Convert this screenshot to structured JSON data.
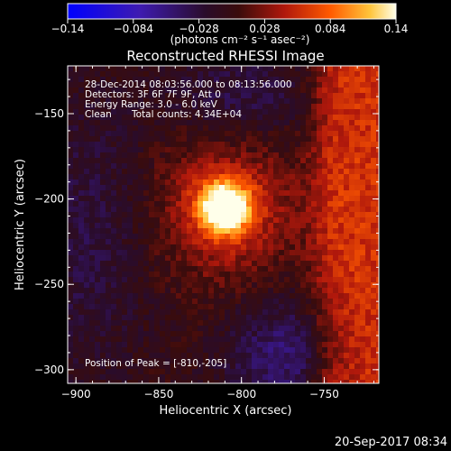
{
  "chart_data": {
    "type": "heatmap",
    "title": "Reconstructed RHESSI Image",
    "xlabel": "Heliocentric X (arcsec)",
    "ylabel": "Heliocentric Y (arcsec)",
    "xlim": [
      -905,
      -717
    ],
    "ylim": [
      -308,
      -122
    ],
    "x_ticks": [
      {
        "value": -900,
        "label": "−900"
      },
      {
        "value": -850,
        "label": "−850"
      },
      {
        "value": -800,
        "label": "−800"
      },
      {
        "value": -750,
        "label": "−750"
      }
    ],
    "y_ticks": [
      {
        "value": -150,
        "label": "−150"
      },
      {
        "value": -200,
        "label": "−200"
      },
      {
        "value": -250,
        "label": "−250"
      },
      {
        "value": -300,
        "label": "−300"
      }
    ],
    "colorbar": {
      "min": -0.14,
      "max": 0.14,
      "ticks": [
        {
          "value": -0.14,
          "label": "−0.14"
        },
        {
          "value": -0.084,
          "label": "−0.084"
        },
        {
          "value": -0.028,
          "label": "−0.028"
        },
        {
          "value": 0.028,
          "label": "0.028"
        },
        {
          "value": 0.084,
          "label": "0.084"
        },
        {
          "value": 0.14,
          "label": "0.14"
        }
      ],
      "units": "(photons cm⁻² s⁻¹ asec⁻²)"
    },
    "peak": {
      "x": -810,
      "y": -205,
      "value": 0.14
    },
    "annotations": {
      "time_range": "28-Dec-2014 08:03:56.000 to 08:13:56.000",
      "detectors": "Detectors: 3F 6F 7F 9F, Att 0",
      "energy": "Energy Range: 3.0 - 6.0 keV",
      "method": "Clean",
      "counts": "Total counts: 4.34E+04",
      "peak_label": "Position of Peak = [-810,-205]"
    }
  },
  "footer": {
    "timestamp": "20-Sep-2017 08:34"
  },
  "colors": {
    "background": "#000000",
    "text": "#ffffff",
    "colormap": [
      "#0000ff",
      "#3b1aa0",
      "#1a0a1e",
      "#3a0e10",
      "#b01a10",
      "#ff5a00",
      "#ffd84a",
      "#ffffe8"
    ]
  }
}
